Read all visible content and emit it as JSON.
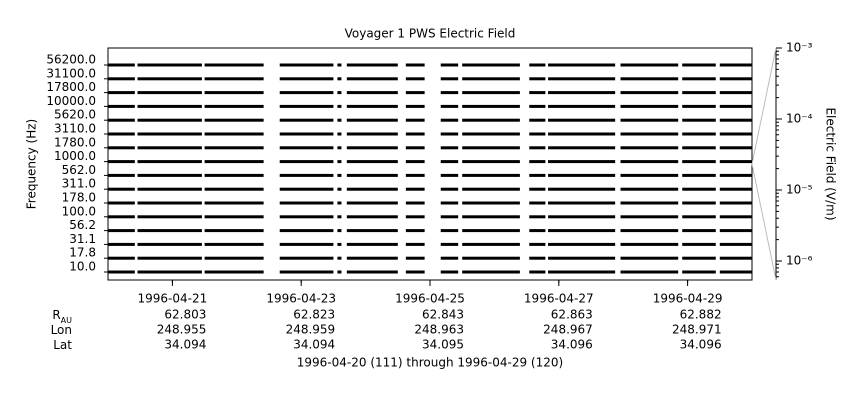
{
  "chart_data": {
    "type": "channel-strip",
    "title": "Voyager 1 PWS Electric Field",
    "ylabel": "Frequency (Hz)",
    "y2label": "Electric Field (V/m)",
    "caption": "1996-04-20 (111) through 1996-04-29 (120)",
    "xlim": [
      "1996-04-20",
      "1996-04-30"
    ],
    "xticks": [
      "1996-04-21",
      "1996-04-23",
      "1996-04-25",
      "1996-04-27",
      "1996-04-29"
    ],
    "yticks": [
      {
        "value": 10,
        "label": "10.0"
      },
      {
        "value": 17.8,
        "label": "17.8"
      },
      {
        "value": 31.1,
        "label": "31.1"
      },
      {
        "value": 56.2,
        "label": "56.2"
      },
      {
        "value": 100,
        "label": "100.0"
      },
      {
        "value": 178,
        "label": "178.0"
      },
      {
        "value": 311,
        "label": "311.0"
      },
      {
        "value": 562,
        "label": "562.0"
      },
      {
        "value": 1000,
        "label": "1000.0"
      },
      {
        "value": 1780,
        "label": "1780.0"
      },
      {
        "value": 3110,
        "label": "3110.0"
      },
      {
        "value": 5620,
        "label": "5620.0"
      },
      {
        "value": 10000,
        "label": "10000.0"
      },
      {
        "value": 17800,
        "label": "17800.0"
      },
      {
        "value": 31100,
        "label": "31100.0"
      },
      {
        "value": 56200,
        "label": "56200.0"
      }
    ],
    "y2lim": [
      5.4e-07,
      0.001
    ],
    "y2ticks": [
      {
        "value": 0.001,
        "label": "10⁻³"
      },
      {
        "value": 0.0001,
        "label": "10⁻⁴"
      },
      {
        "value": 1e-05,
        "label": "10⁻⁵"
      },
      {
        "value": 1e-06,
        "label": "10⁻⁶"
      }
    ],
    "color": "#000000",
    "segments": [
      [
        "1996-04-20T00:00",
        "1996-04-20T10:00"
      ],
      [
        "1996-04-20T11:00",
        "1996-04-21T11:00"
      ],
      [
        "1996-04-21T12:00",
        "1996-04-22T10:00"
      ],
      [
        "1996-04-22T16:00",
        "1996-04-23T12:00"
      ],
      [
        "1996-04-23T13:30",
        "1996-04-23T15:00"
      ],
      [
        "1996-04-23T17:00",
        "1996-04-24T12:00"
      ],
      [
        "1996-04-24T15:00",
        "1996-04-24T22:00"
      ],
      [
        "1996-04-25T04:00",
        "1996-04-25T10:30"
      ],
      [
        "1996-04-25T12:00",
        "1996-04-26T09:30"
      ],
      [
        "1996-04-26T13:00",
        "1996-04-26T19:00"
      ],
      [
        "1996-04-26T20:00",
        "1996-04-27T21:00"
      ],
      [
        "1996-04-27T23:00",
        "1996-04-28T20:30"
      ],
      [
        "1996-04-28T22:00",
        "1996-04-29T10:30"
      ],
      [
        "1996-04-29T12:00",
        "1996-04-30T00:00"
      ]
    ],
    "ephemeris": {
      "labels": [
        {
          "main": "R",
          "sub": "AU"
        },
        {
          "main": "Lon"
        },
        {
          "main": "Lat"
        }
      ],
      "rows": [
        [
          "62.803",
          "62.823",
          "62.843",
          "62.863",
          "62.882"
        ],
        [
          "248.955",
          "248.959",
          "248.963",
          "248.967",
          "248.971"
        ],
        [
          "34.094",
          "34.094",
          "34.095",
          "34.096",
          "34.096"
        ]
      ]
    }
  }
}
